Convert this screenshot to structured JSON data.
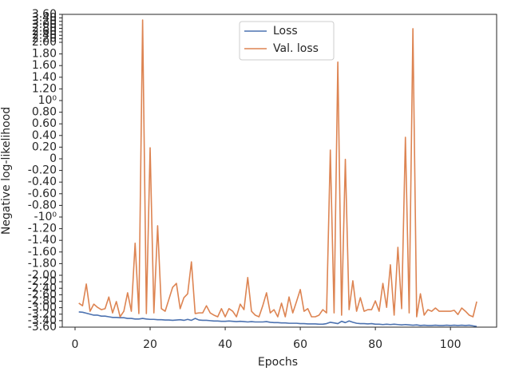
{
  "chart_data": {
    "type": "line",
    "xlabel": "Epochs",
    "ylabel": "Negative log-likelihood",
    "x": [
      1,
      2,
      3,
      4,
      5,
      6,
      7,
      8,
      9,
      10,
      11,
      12,
      13,
      14,
      15,
      16,
      17,
      18,
      19,
      20,
      21,
      22,
      23,
      24,
      25,
      26,
      27,
      28,
      29,
      30,
      31,
      32,
      33,
      34,
      35,
      36,
      37,
      38,
      39,
      40,
      41,
      42,
      43,
      44,
      45,
      46,
      47,
      48,
      49,
      50,
      51,
      52,
      53,
      54,
      55,
      56,
      57,
      58,
      59,
      60,
      61,
      62,
      63,
      64,
      65,
      66,
      67,
      68,
      69,
      70,
      71,
      72,
      73,
      74,
      75,
      76,
      77,
      78,
      79,
      80,
      81,
      82,
      83,
      84,
      85,
      86,
      87,
      88,
      89,
      90,
      91,
      92,
      93,
      94,
      95,
      96,
      97,
      98,
      99,
      100,
      101,
      102,
      103,
      104,
      105,
      106,
      107
    ],
    "series": [
      {
        "name": "Loss",
        "color": "#4c72b0",
        "values": [
          -3.13,
          -3.14,
          -3.17,
          -3.2,
          -3.23,
          -3.23,
          -3.26,
          -3.26,
          -3.28,
          -3.3,
          -3.3,
          -3.31,
          -3.31,
          -3.33,
          -3.33,
          -3.35,
          -3.35,
          -3.33,
          -3.35,
          -3.36,
          -3.36,
          -3.37,
          -3.37,
          -3.38,
          -3.38,
          -3.39,
          -3.38,
          -3.37,
          -3.39,
          -3.36,
          -3.39,
          -3.33,
          -3.38,
          -3.39,
          -3.39,
          -3.4,
          -3.41,
          -3.41,
          -3.42,
          -3.42,
          -3.41,
          -3.42,
          -3.43,
          -3.42,
          -3.43,
          -3.44,
          -3.43,
          -3.44,
          -3.44,
          -3.44,
          -3.43,
          -3.45,
          -3.46,
          -3.46,
          -3.47,
          -3.47,
          -3.48,
          -3.48,
          -3.48,
          -3.49,
          -3.49,
          -3.5,
          -3.5,
          -3.5,
          -3.51,
          -3.51,
          -3.49,
          -3.45,
          -3.47,
          -3.49,
          -3.42,
          -3.46,
          -3.41,
          -3.45,
          -3.48,
          -3.49,
          -3.49,
          -3.5,
          -3.49,
          -3.51,
          -3.51,
          -3.52,
          -3.51,
          -3.52,
          -3.51,
          -3.52,
          -3.53,
          -3.52,
          -3.53,
          -3.54,
          -3.53,
          -3.55,
          -3.54,
          -3.55,
          -3.55,
          -3.54,
          -3.55,
          -3.55,
          -3.54,
          -3.55,
          -3.54,
          -3.55,
          -3.54,
          -3.55,
          -3.54,
          -3.56,
          -3.58
        ]
      },
      {
        "name": "Val. loss",
        "color": "#dd8452",
        "values": [
          -2.86,
          -2.94,
          -2.27,
          -3.11,
          -2.89,
          -2.99,
          -3.06,
          -3.03,
          -2.67,
          -3.16,
          -2.81,
          -3.28,
          -3.11,
          -2.54,
          -3.11,
          -1.45,
          -3.18,
          3.28,
          -3.18,
          0.19,
          -3.16,
          -1.15,
          -3.03,
          -3.11,
          -2.74,
          -2.37,
          -2.25,
          -3.03,
          -2.69,
          -2.57,
          -1.77,
          -3.18,
          -3.16,
          -3.16,
          -2.94,
          -3.16,
          -3.23,
          -3.28,
          -3.03,
          -3.28,
          -3.03,
          -3.11,
          -3.28,
          -2.89,
          -3.06,
          -2.07,
          -3.11,
          -3.23,
          -3.28,
          -2.94,
          -2.54,
          -3.16,
          -3.06,
          -3.28,
          -2.86,
          -3.28,
          -2.67,
          -3.16,
          -2.81,
          -2.44,
          -3.11,
          -3.03,
          -3.28,
          -3.28,
          -3.23,
          -3.06,
          -3.16,
          0.15,
          -3.16,
          1.66,
          -3.23,
          -0.01,
          -3.06,
          -2.17,
          -3.11,
          -2.69,
          -3.11,
          -3.06,
          -3.06,
          -2.79,
          -3.11,
          -2.25,
          -2.99,
          -1.82,
          -3.23,
          -1.52,
          -3.03,
          0.37,
          -3.16,
          2.78,
          -3.28,
          -2.57,
          -3.23,
          -3.06,
          -3.11,
          -3.01,
          -3.11,
          -3.11,
          -3.11,
          -3.11,
          -3.08,
          -3.21,
          -3.01,
          -3.11,
          -3.23,
          -3.28,
          -2.81
        ]
      }
    ],
    "xlim": [
      -3.4,
      112.3
    ],
    "xticks": [
      0,
      20,
      40,
      60,
      80,
      100
    ],
    "yscale": "compressed-outside",
    "linthresh": 2,
    "ylim": [
      -3.6,
      3.6
    ],
    "yticks": [
      {
        "value": 3.6,
        "label": "3.60"
      },
      {
        "value": 3.4,
        "label": "3.40"
      },
      {
        "value": 3.2,
        "label": "3.20"
      },
      {
        "value": 3,
        "label": "3.00"
      },
      {
        "value": 2.8,
        "label": "2.80"
      },
      {
        "value": 2.6,
        "label": "2.60"
      },
      {
        "value": 2.4,
        "label": "2.40"
      },
      {
        "value": 2.2,
        "label": "2.20"
      },
      {
        "value": 2,
        "label": "2.00"
      },
      {
        "value": 1.8,
        "label": "1.80"
      },
      {
        "value": 1.6,
        "label": "1.60"
      },
      {
        "value": 1.4,
        "label": "1.40"
      },
      {
        "value": 1.2,
        "label": "1.20"
      },
      {
        "value": 1,
        "label": "10⁰"
      },
      {
        "value": 0.8,
        "label": "0.80"
      },
      {
        "value": 0.6,
        "label": "0.60"
      },
      {
        "value": 0.4,
        "label": "0.40"
      },
      {
        "value": 0.2,
        "label": "0.20"
      },
      0,
      {
        "value": -0.2,
        "label": "-0.20"
      },
      {
        "value": -0.4,
        "label": "-0.40"
      },
      {
        "value": -0.6,
        "label": "-0.60"
      },
      {
        "value": -0.8,
        "label": "-0.80"
      },
      {
        "value": -1,
        "label": "-10⁰"
      },
      {
        "value": -1.2,
        "label": "-1.20"
      },
      {
        "value": -1.4,
        "label": "-1.40"
      },
      {
        "value": -1.6,
        "label": "-1.60"
      },
      {
        "value": -1.8,
        "label": "-1.80"
      },
      {
        "value": -2,
        "label": "-2.00"
      },
      {
        "value": -2.2,
        "label": "-2.20"
      },
      {
        "value": -2.4,
        "label": "-2.40"
      },
      {
        "value": -2.6,
        "label": "-2.60"
      },
      {
        "value": -2.8,
        "label": "-2.80"
      },
      {
        "value": -3,
        "label": "-3.00"
      },
      {
        "value": -3.2,
        "label": "-3.20"
      },
      {
        "value": -3.4,
        "label": "-3.40"
      },
      {
        "value": -3.6,
        "label": "-3.60"
      }
    ],
    "legend": "upper center"
  }
}
